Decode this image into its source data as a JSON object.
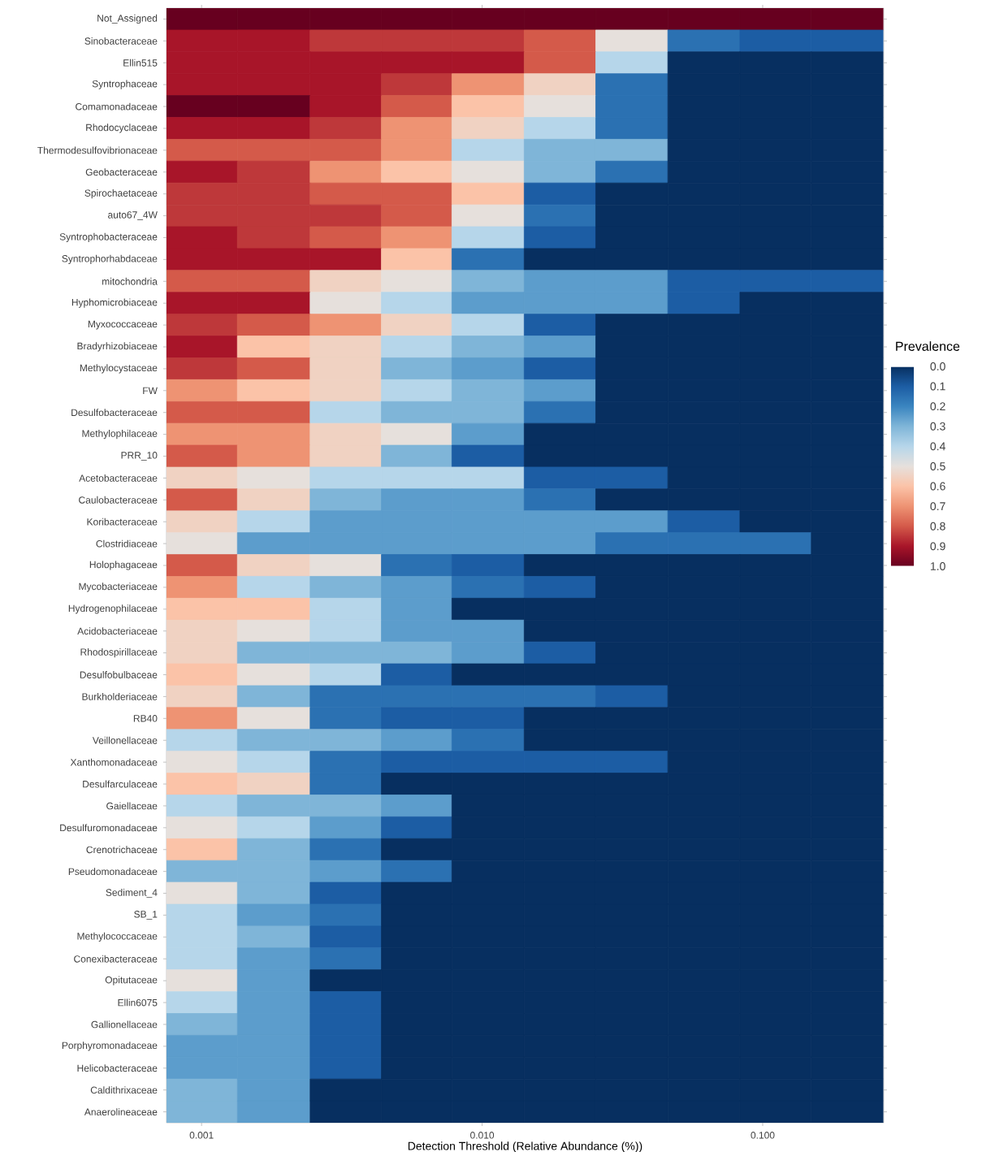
{
  "chart_data": {
    "type": "heatmap",
    "xlabel": "Detection Threshold (Relative Abundance (%))",
    "clabel": "Prevalence",
    "log": "x",
    "xlim": [
      0.00075,
      0.27
    ],
    "xticks": [
      {
        "value": 0.001,
        "label": "0.001"
      },
      {
        "value": 0.01,
        "label": "0.010"
      },
      {
        "value": 0.1,
        "label": "0.100"
      }
    ],
    "x": [
      0.001,
      0.0018,
      0.0033,
      0.0058,
      0.0105,
      0.019,
      0.034,
      0.062,
      0.111,
      0.2
    ],
    "y_categories": [
      "Not_Assigned",
      "Sinobacteraceae",
      "Ellin515",
      "Syntrophaceae",
      "Comamonadaceae",
      "Rhodocyclaceae",
      "Thermodesulfovibrionaceae",
      "Geobacteraceae",
      "Spirochaetaceae",
      "auto67_4W",
      "Syntrophobacteraceae",
      "Syntrophorhabdaceae",
      "mitochondria",
      "Hyphomicrobiaceae",
      "Myxococcaceae",
      "Bradyrhizobiaceae",
      "Methylocystaceae",
      "FW",
      "Desulfobacteraceae",
      "Methylophilaceae",
      "PRR_10",
      "Acetobacteraceae",
      "Caulobacteraceae",
      "Koribacteraceae",
      "Clostridiaceae",
      "Holophagaceae",
      "Mycobacteriaceae",
      "Hydrogenophilaceae",
      "Acidobacteriaceae",
      "Rhodospirillaceae",
      "Desulfobulbaceae",
      "Burkholderiaceae",
      "RB40",
      "Veillonellaceae",
      "Xanthomonadaceae",
      "Desulfarculaceae",
      "Gaiellaceae",
      "Desulfuromonadaceae",
      "Crenotrichaceae",
      "Pseudomonadaceae",
      "Sediment_4",
      "SB_1",
      "Methylococcaceae",
      "Conexibacteraceae",
      "Opitutaceae",
      "Ellin6075",
      "Gallionellaceae",
      "Porphyromonadaceae",
      "Helicobacteraceae",
      "Caldithrixaceae",
      "Anaerolineaceae"
    ],
    "cells": [
      [
        1,
        1,
        1,
        1,
        1,
        1,
        1,
        1,
        1,
        1
      ],
      [
        0.9,
        0.9,
        0.85,
        0.85,
        0.85,
        0.8,
        0.5,
        0.15,
        0.1,
        0.1
      ],
      [
        0.9,
        0.9,
        0.9,
        0.9,
        0.9,
        0.8,
        0.4,
        0,
        0,
        0
      ],
      [
        0.9,
        0.9,
        0.9,
        0.85,
        0.7,
        0.55,
        0.15,
        0,
        0,
        0
      ],
      [
        1,
        1,
        0.9,
        0.8,
        0.6,
        0.5,
        0.15,
        0,
        0,
        0
      ],
      [
        0.9,
        0.9,
        0.85,
        0.7,
        0.55,
        0.4,
        0.15,
        0,
        0,
        0
      ],
      [
        0.8,
        0.8,
        0.8,
        0.7,
        0.4,
        0.3,
        0.3,
        0,
        0,
        0
      ],
      [
        0.9,
        0.85,
        0.7,
        0.6,
        0.5,
        0.3,
        0.15,
        0,
        0,
        0
      ],
      [
        0.85,
        0.85,
        0.8,
        0.8,
        0.6,
        0.1,
        0,
        0,
        0,
        0
      ],
      [
        0.85,
        0.85,
        0.85,
        0.8,
        0.5,
        0.15,
        0,
        0,
        0,
        0
      ],
      [
        0.9,
        0.85,
        0.8,
        0.7,
        0.4,
        0.1,
        0,
        0,
        0,
        0
      ],
      [
        0.9,
        0.9,
        0.9,
        0.6,
        0.15,
        0,
        0,
        0,
        0,
        0
      ],
      [
        0.8,
        0.8,
        0.55,
        0.5,
        0.3,
        0.25,
        0.25,
        0.1,
        0.1,
        0.1
      ],
      [
        0.9,
        0.9,
        0.5,
        0.4,
        0.25,
        0.25,
        0.25,
        0.1,
        0,
        0
      ],
      [
        0.85,
        0.8,
        0.7,
        0.55,
        0.4,
        0.1,
        0,
        0,
        0,
        0
      ],
      [
        0.9,
        0.6,
        0.55,
        0.4,
        0.3,
        0.25,
        0,
        0,
        0,
        0
      ],
      [
        0.85,
        0.8,
        0.55,
        0.3,
        0.25,
        0.1,
        0,
        0,
        0,
        0
      ],
      [
        0.7,
        0.6,
        0.55,
        0.4,
        0.3,
        0.25,
        0,
        0,
        0,
        0
      ],
      [
        0.8,
        0.8,
        0.4,
        0.3,
        0.3,
        0.15,
        0,
        0,
        0,
        0
      ],
      [
        0.7,
        0.7,
        0.55,
        0.5,
        0.25,
        0,
        0,
        0,
        0,
        0
      ],
      [
        0.8,
        0.7,
        0.55,
        0.3,
        0.1,
        0,
        0,
        0,
        0,
        0
      ],
      [
        0.55,
        0.5,
        0.4,
        0.4,
        0.4,
        0.1,
        0.1,
        0,
        0,
        0
      ],
      [
        0.8,
        0.55,
        0.3,
        0.25,
        0.25,
        0.15,
        0,
        0,
        0,
        0
      ],
      [
        0.55,
        0.4,
        0.25,
        0.25,
        0.25,
        0.25,
        0.25,
        0.1,
        0,
        0
      ],
      [
        0.5,
        0.25,
        0.25,
        0.25,
        0.25,
        0.25,
        0.15,
        0.15,
        0.15,
        0
      ],
      [
        0.8,
        0.55,
        0.5,
        0.15,
        0.1,
        0,
        0,
        0,
        0,
        0
      ],
      [
        0.7,
        0.4,
        0.3,
        0.25,
        0.15,
        0.1,
        0,
        0,
        0,
        0
      ],
      [
        0.6,
        0.6,
        0.4,
        0.25,
        0,
        0,
        0,
        0,
        0,
        0
      ],
      [
        0.55,
        0.5,
        0.4,
        0.25,
        0.25,
        0,
        0,
        0,
        0,
        0
      ],
      [
        0.55,
        0.3,
        0.3,
        0.3,
        0.25,
        0.1,
        0,
        0,
        0,
        0
      ],
      [
        0.6,
        0.5,
        0.4,
        0.1,
        0,
        0,
        0,
        0,
        0,
        0
      ],
      [
        0.55,
        0.3,
        0.15,
        0.15,
        0.15,
        0.15,
        0.1,
        0,
        0,
        0
      ],
      [
        0.7,
        0.5,
        0.15,
        0.1,
        0.1,
        0,
        0,
        0,
        0,
        0
      ],
      [
        0.4,
        0.3,
        0.3,
        0.25,
        0.15,
        0,
        0,
        0,
        0,
        0
      ],
      [
        0.5,
        0.4,
        0.15,
        0.1,
        0.1,
        0.1,
        0.1,
        0,
        0,
        0
      ],
      [
        0.6,
        0.55,
        0.15,
        0,
        0,
        0,
        0,
        0,
        0,
        0
      ],
      [
        0.4,
        0.3,
        0.3,
        0.25,
        0,
        0,
        0,
        0,
        0,
        0
      ],
      [
        0.5,
        0.4,
        0.25,
        0.1,
        0,
        0,
        0,
        0,
        0,
        0
      ],
      [
        0.6,
        0.3,
        0.15,
        0,
        0,
        0,
        0,
        0,
        0,
        0
      ],
      [
        0.3,
        0.3,
        0.25,
        0.15,
        0,
        0,
        0,
        0,
        0,
        0
      ],
      [
        0.5,
        0.3,
        0.1,
        0,
        0,
        0,
        0,
        0,
        0,
        0
      ],
      [
        0.4,
        0.25,
        0.15,
        0,
        0,
        0,
        0,
        0,
        0,
        0
      ],
      [
        0.4,
        0.3,
        0.1,
        0,
        0,
        0,
        0,
        0,
        0,
        0
      ],
      [
        0.4,
        0.25,
        0.15,
        0,
        0,
        0,
        0,
        0,
        0,
        0
      ],
      [
        0.5,
        0.25,
        0,
        0,
        0,
        0,
        0,
        0,
        0,
        0
      ],
      [
        0.4,
        0.25,
        0.1,
        0,
        0,
        0,
        0,
        0,
        0,
        0
      ],
      [
        0.3,
        0.25,
        0.1,
        0,
        0,
        0,
        0,
        0,
        0,
        0
      ],
      [
        0.25,
        0.25,
        0.1,
        0,
        0,
        0,
        0,
        0,
        0,
        0
      ],
      [
        0.25,
        0.25,
        0.1,
        0,
        0,
        0,
        0,
        0,
        0,
        0
      ],
      [
        0.3,
        0.25,
        0,
        0,
        0,
        0,
        0,
        0,
        0,
        0
      ],
      [
        0.3,
        0.25,
        0,
        0,
        0,
        0,
        0,
        0,
        0,
        0
      ]
    ],
    "clim": [
      0,
      1
    ],
    "cticks": [
      {
        "value": 0,
        "label": "0.0"
      },
      {
        "value": 0.1,
        "label": "0.1"
      },
      {
        "value": 0.2,
        "label": "0.2"
      },
      {
        "value": 0.3,
        "label": "0.3"
      },
      {
        "value": 0.4,
        "label": "0.4"
      },
      {
        "value": 0.5,
        "label": "0.5"
      },
      {
        "value": 0.6,
        "label": "0.6"
      },
      {
        "value": 0.7,
        "label": "0.7"
      },
      {
        "value": 0.8,
        "label": "0.8"
      },
      {
        "value": 0.9,
        "label": "0.9"
      },
      {
        "value": 1,
        "label": "1.0"
      }
    ]
  }
}
